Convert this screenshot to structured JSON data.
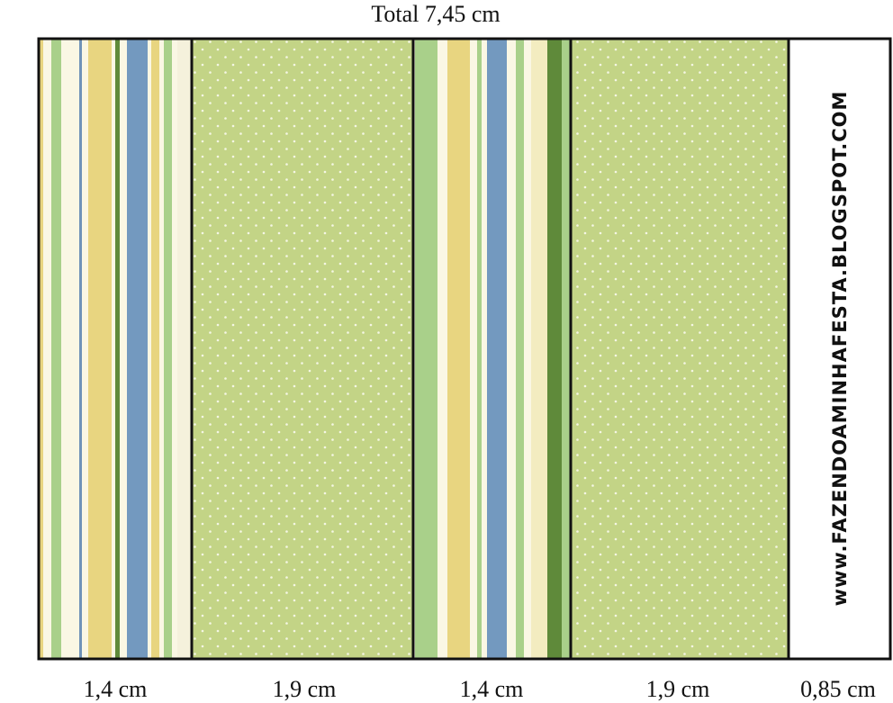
{
  "header": {
    "title": "Total 7,45 cm"
  },
  "panels": [
    {
      "label": "1,4 cm"
    },
    {
      "label": "1,9 cm"
    },
    {
      "label": "1,4 cm"
    },
    {
      "label": "1,9 cm"
    },
    {
      "label": "0,85 cm"
    }
  ],
  "side_text": "www.FAZENDOAMINHAFESTA.BLOGSPOT.COM"
}
